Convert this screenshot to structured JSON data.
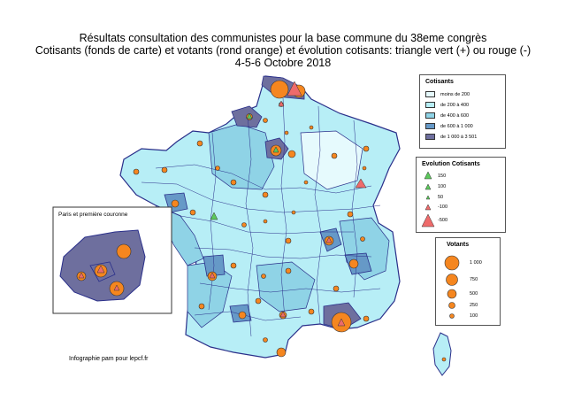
{
  "title": {
    "line1": "Résultats consultation des communistes pour la base commune du 38eme congrès",
    "line2": "Cotisants (fonds de carte) et votants (rond orange) et évolution cotisants: triangle vert (+) ou rouge (-)",
    "line3": "4-5-6 Octobre 2018"
  },
  "inset_title": "Paris et première couronne",
  "credit": "Infographie pam pour lepcf.fr",
  "legend_cotisants": {
    "title": "Cotisants",
    "items": [
      {
        "label": "moins de 200",
        "color": "#e6fafd"
      },
      {
        "label": "de 200 à 400",
        "color": "#b7eef6"
      },
      {
        "label": "de 400 à 600",
        "color": "#8fd3e6"
      },
      {
        "label": "de 600 à 1 000",
        "color": "#6699c7"
      },
      {
        "label": "de 1 000 à 3 501",
        "color": "#6e6f9e"
      }
    ]
  },
  "legend_evolution": {
    "title": "Evolution Cotisants",
    "items": [
      {
        "label": "150",
        "color": "#5cc95c"
      },
      {
        "label": "100",
        "color": "#5cc95c"
      },
      {
        "label": "50",
        "color": "#5cc95c"
      },
      {
        "label": "-100",
        "color": "#ee6b6b"
      },
      {
        "label": "-500",
        "color": "#ee6b6b"
      }
    ]
  },
  "legend_votants": {
    "title": "Votants",
    "items": [
      {
        "label": "1 000",
        "value": 1000
      },
      {
        "label": "750",
        "value": 750
      },
      {
        "label": "500",
        "value": 500
      },
      {
        "label": "250",
        "value": 250
      },
      {
        "label": "100",
        "value": 100
      }
    ]
  },
  "colors": {
    "dept_border": "#2a2f8a",
    "land_light": "#b7eef6",
    "land_mid": "#8fd3e6",
    "votants": "#f5861f",
    "triangle_up": "#5cc95c",
    "triangle_down": "#ee6b6b"
  }
}
